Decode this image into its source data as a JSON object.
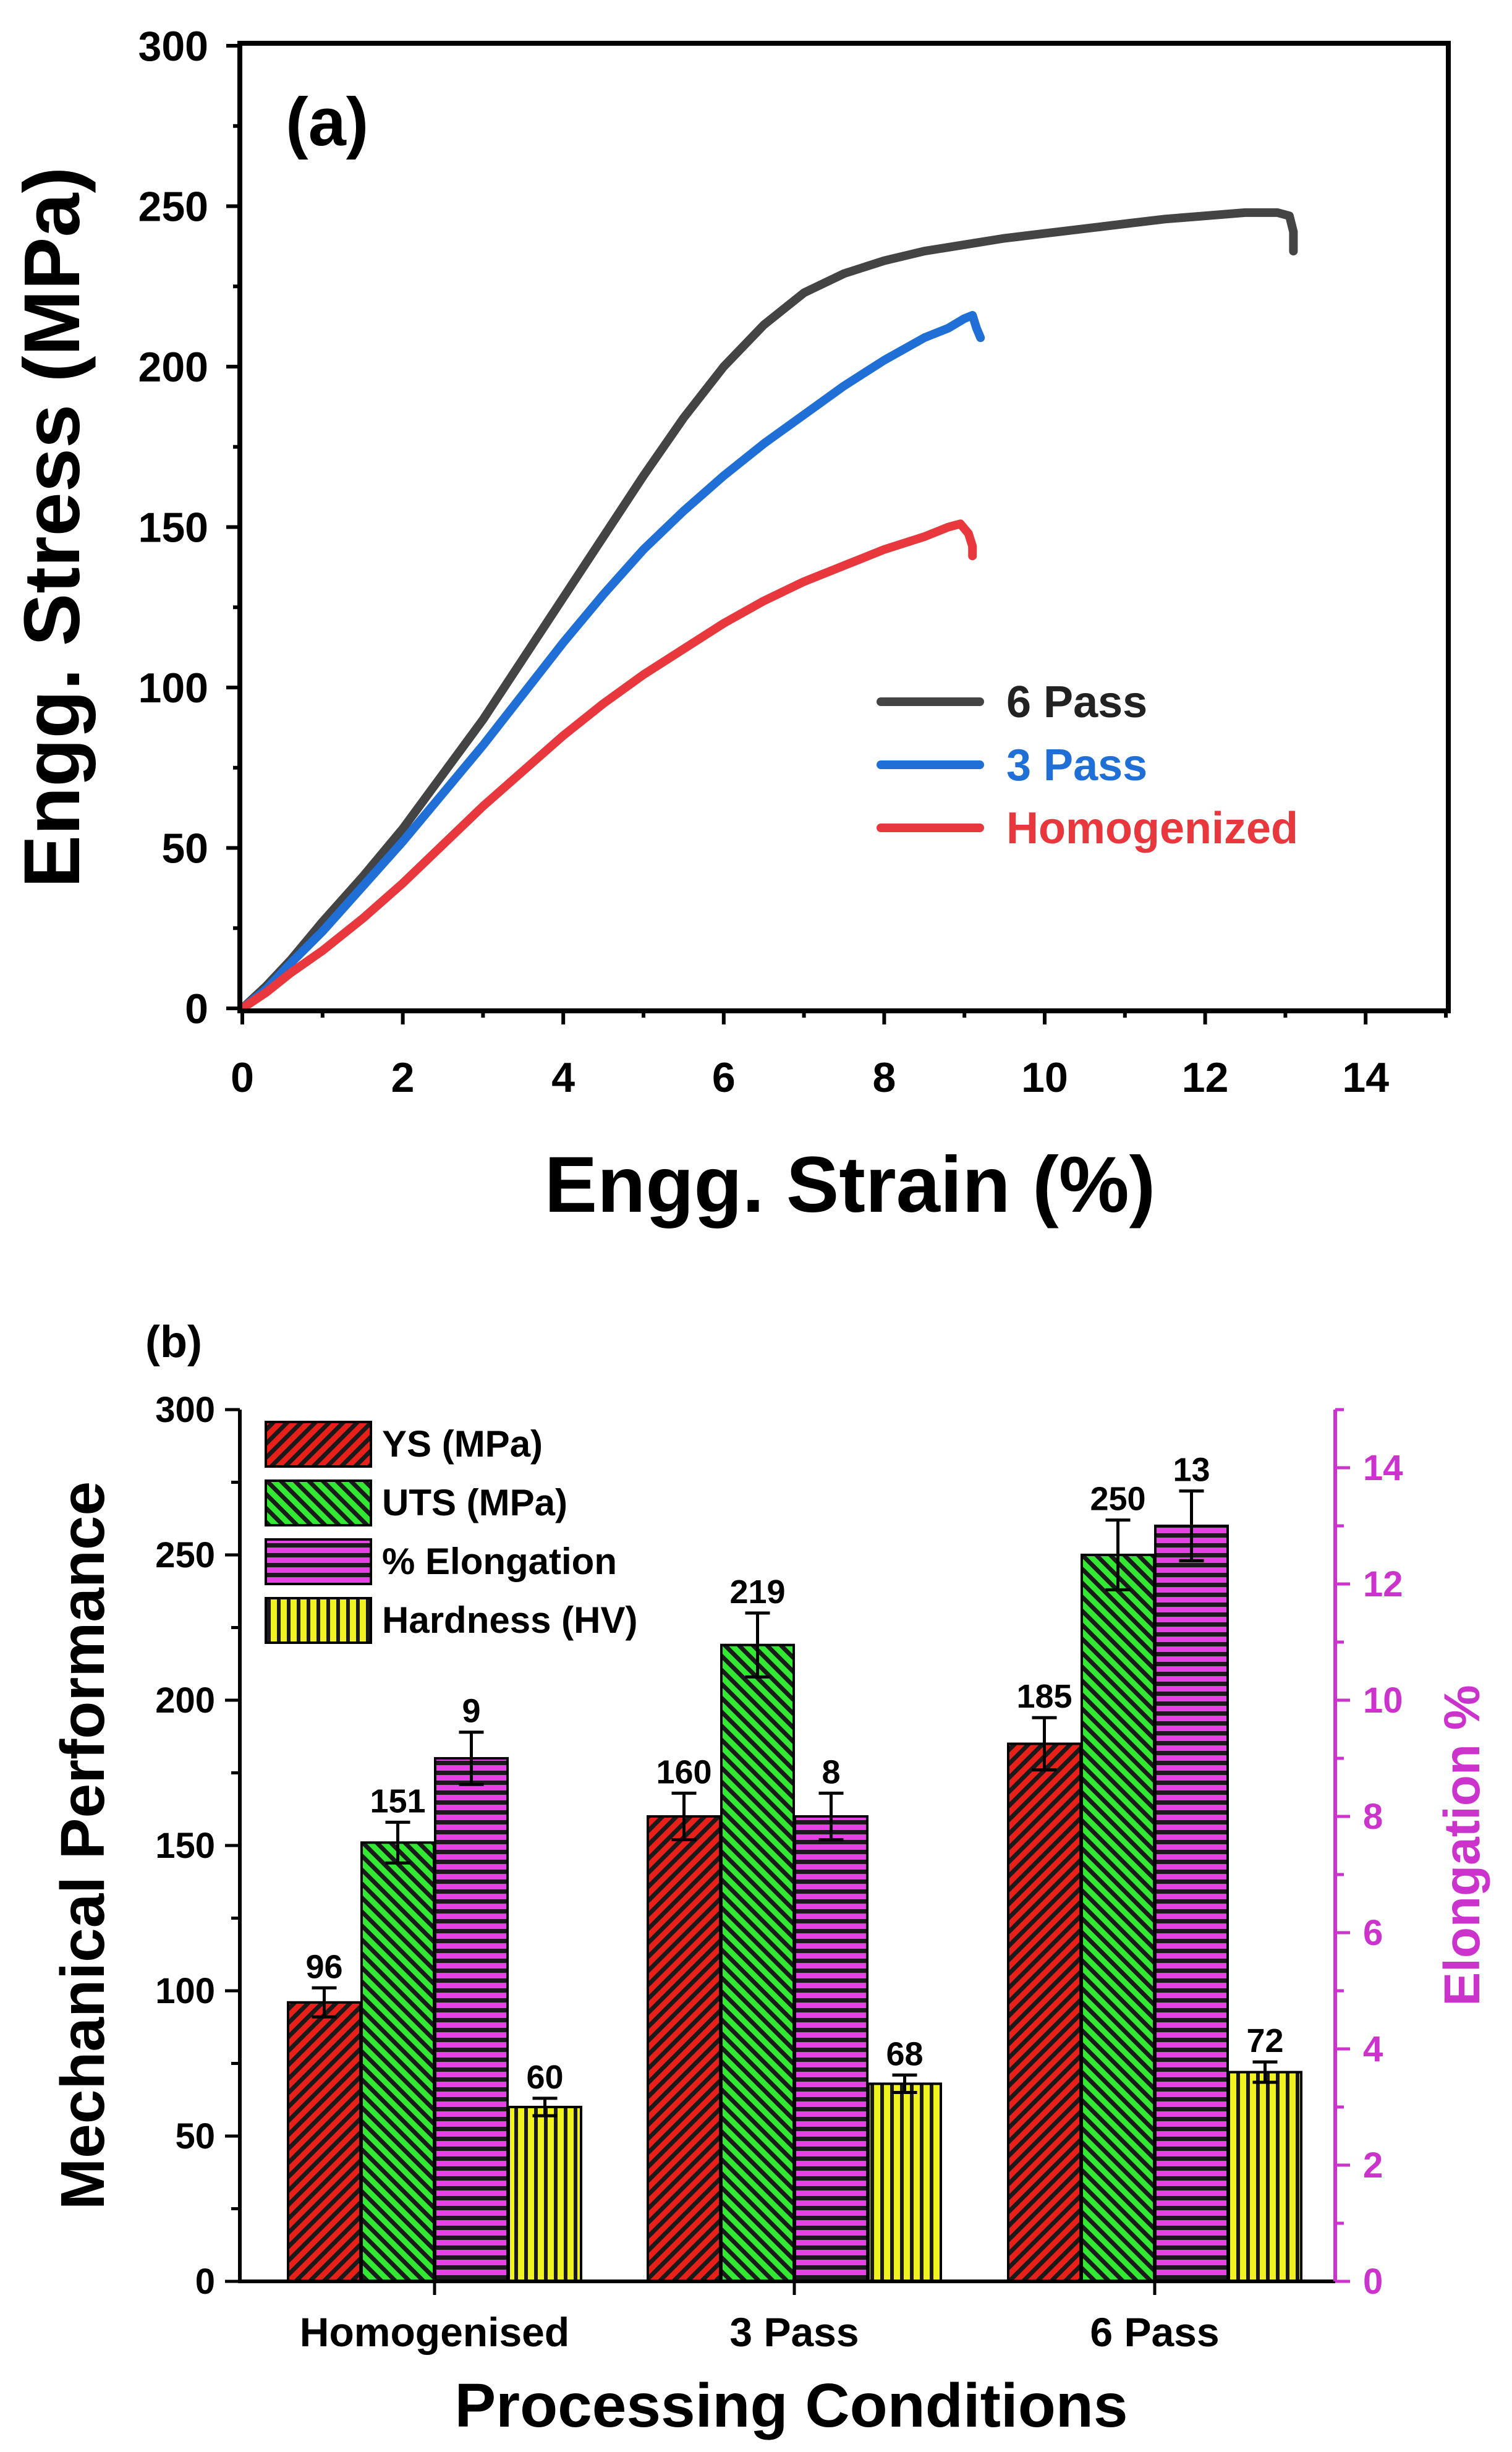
{
  "chart_data": [
    {
      "type": "line",
      "panel_label": "(a)",
      "xlabel": "Engg. Strain (%)",
      "ylabel": "Engg. Stress (MPa)",
      "xlim": [
        0,
        15
      ],
      "ylim": [
        0,
        300
      ],
      "xticks": [
        "0",
        "2",
        "4",
        "6",
        "8",
        "10",
        "12",
        "14"
      ],
      "yticks": [
        "0",
        "50",
        "100",
        "150",
        "200",
        "250",
        "300"
      ],
      "legend_position": "right-middle",
      "series": [
        {
          "name": "6 Pass",
          "color": "#444444",
          "x": [
            0,
            0.3,
            0.6,
            1.0,
            1.5,
            2.0,
            2.5,
            3.0,
            3.5,
            4.0,
            4.5,
            5.0,
            5.5,
            6.0,
            6.5,
            7.0,
            7.5,
            8.0,
            8.5,
            9.0,
            9.5,
            10.0,
            10.5,
            11.0,
            11.5,
            12.0,
            12.5,
            12.9,
            13.05,
            13.1,
            13.1
          ],
          "y": [
            0,
            7,
            15,
            27,
            41,
            56,
            73,
            90,
            109,
            128,
            147,
            166,
            184,
            200,
            213,
            223,
            229,
            233,
            236,
            238,
            240,
            241.5,
            243,
            244.5,
            246,
            247,
            248,
            248,
            247,
            242,
            236
          ]
        },
        {
          "name": "3 Pass",
          "color": "#1f6fd6",
          "x": [
            0,
            0.3,
            0.6,
            1.0,
            1.5,
            2.0,
            2.5,
            3.0,
            3.5,
            4.0,
            4.5,
            5.0,
            5.5,
            6.0,
            6.5,
            7.0,
            7.5,
            8.0,
            8.5,
            8.8,
            9.0,
            9.1,
            9.15,
            9.2
          ],
          "y": [
            0,
            6,
            14,
            24,
            38,
            52,
            67,
            82,
            98,
            114,
            129,
            143,
            155,
            166,
            176,
            185,
            194,
            202,
            209,
            212,
            215,
            216,
            212,
            209
          ]
        },
        {
          "name": "Homogenized",
          "color": "#e8383d",
          "x": [
            0,
            0.3,
            0.6,
            1.0,
            1.5,
            2.0,
            2.5,
            3.0,
            3.5,
            4.0,
            4.5,
            5.0,
            5.5,
            6.0,
            6.5,
            7.0,
            7.5,
            8.0,
            8.5,
            8.8,
            8.95,
            9.05,
            9.1,
            9.1
          ],
          "y": [
            0,
            5,
            11,
            18,
            28,
            39,
            51,
            63,
            74,
            85,
            95,
            104,
            112,
            120,
            127,
            133,
            138,
            143,
            147,
            150,
            151,
            148,
            144,
            141
          ]
        }
      ]
    },
    {
      "type": "bar",
      "panel_label": "(b)",
      "xlabel": "Processing Conditions",
      "ylabel": "Mechanical Performance",
      "ylabel_right": "Elongation %",
      "ylim": [
        0,
        300
      ],
      "ylim_right": [
        0,
        15
      ],
      "yticks": [
        "0",
        "50",
        "100",
        "150",
        "200",
        "250",
        "300"
      ],
      "yticks_right": [
        "0",
        "2",
        "4",
        "6",
        "8",
        "10",
        "12",
        "14"
      ],
      "right_axis_color": "#cc33cc",
      "categories": [
        "Homogenised",
        "3 Pass",
        "6 Pass"
      ],
      "legend_position": "top-left",
      "series": [
        {
          "name": "YS (MPa)",
          "color": "#e8201a",
          "pattern": "diag-right",
          "axis": "left",
          "values": [
            96,
            160,
            185
          ],
          "errors": [
            5,
            8,
            9
          ],
          "labels": [
            "96",
            "160",
            "185"
          ]
        },
        {
          "name": "UTS (MPa)",
          "color": "#33e833",
          "pattern": "diag-left",
          "axis": "left",
          "values": [
            151,
            219,
            250
          ],
          "errors": [
            7,
            11,
            12
          ],
          "labels": [
            "151",
            "219",
            "250"
          ]
        },
        {
          "name": "% Elongation",
          "color": "#e640e6",
          "pattern": "horizontal",
          "axis": "right",
          "values": [
            9,
            8,
            13
          ],
          "errors": [
            0.45,
            0.4,
            0.6
          ],
          "labels": [
            "9",
            "8",
            "13"
          ]
        },
        {
          "name": "Hardness (HV)",
          "color": "#f2f21f",
          "pattern": "vertical",
          "axis": "left",
          "values": [
            60,
            68,
            72
          ],
          "errors": [
            3,
            3,
            3.5
          ],
          "labels": [
            "60",
            "68",
            "72"
          ]
        }
      ]
    }
  ]
}
